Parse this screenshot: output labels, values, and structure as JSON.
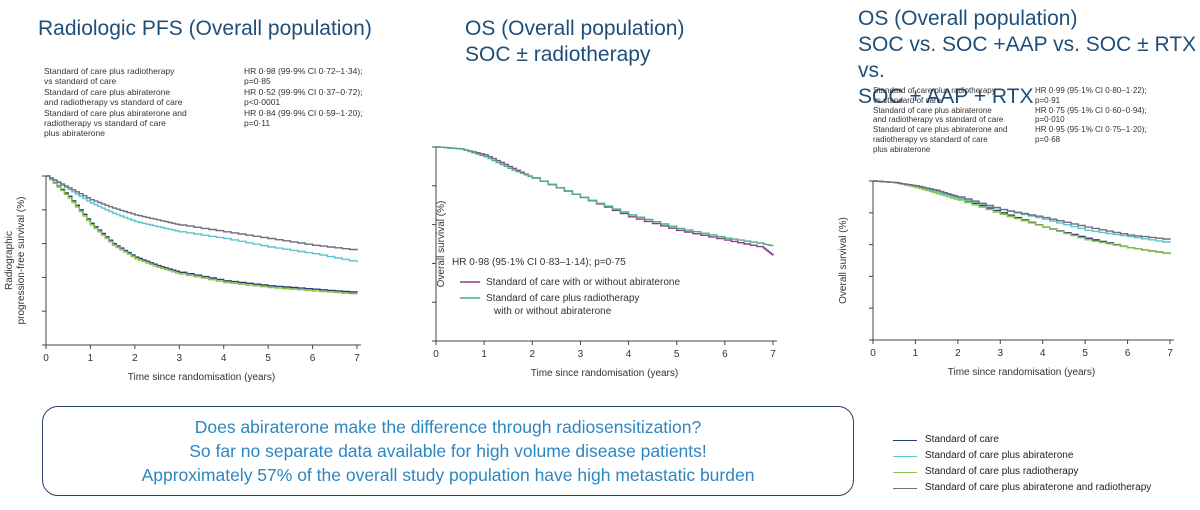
{
  "panels": {
    "pfs": {
      "title_lines": [
        "Radiologic PFS (Overall population)"
      ],
      "stats": [
        {
          "label": "Standard of care plus radiotherapy",
          "hr": "HR 0·98 (99·9% CI 0·72–1·34);"
        },
        {
          "label": "vs standard of care",
          "hr": "p=0·85"
        },
        {
          "label": "Standard of care plus abiraterone",
          "hr": "HR 0·52 (99·9% CI 0·37–0·72);"
        },
        {
          "label": "and radiotherapy vs standard of care",
          "hr": "p<0·0001"
        },
        {
          "label": "Standard of care plus abiraterone and",
          "hr": "HR 0·84 (99·9% CI 0·59–1·20);"
        },
        {
          "label": "radiotherapy vs standard of care",
          "hr": "p=0·11"
        },
        {
          "label": "plus abiraterone",
          "hr": ""
        }
      ]
    },
    "os1": {
      "title_lines": [
        "OS (Overall population)",
        "SOC ± radiotherapy"
      ]
    },
    "os2": {
      "title_lines": [
        "OS (Overall population)",
        "SOC vs. SOC +AAP vs. SOC ± RTX vs.",
        "SOC + AAP + RTX"
      ],
      "stats": [
        {
          "label": "Standard of care plus radiotherapy",
          "hr": "HR 0·99 (95·1% CI 0·80–1·22);"
        },
        {
          "label": "vs standard of care",
          "hr": "p=0·91"
        },
        {
          "label": "Standard of care plus abiraterone",
          "hr": "HR 0·75 (95·1% CI 0·60–0·94);"
        },
        {
          "label": "and radiotherapy vs standard of care",
          "hr": "p=0·010"
        },
        {
          "label": "Standard of care plus abiraterone and",
          "hr": "HR 0·95 (95·1% CI 0·75–1·20);"
        },
        {
          "label": "radiotherapy vs standard of care",
          "hr": "p=0·68"
        },
        {
          "label": "plus abiraterone",
          "hr": ""
        }
      ]
    }
  },
  "callout": {
    "lines": [
      "Does abiraterone make the difference through radiosensitization?",
      "So far no separate data available for high volume disease patients!",
      "Approximately 57% of the overall study population have high metastatic burden"
    ]
  },
  "legend": {
    "items": [
      {
        "label": "Standard of care",
        "color": "#2c3e7a"
      },
      {
        "label": "Standard of care plus abiraterone",
        "color": "#5bc4d1"
      },
      {
        "label": "Standard of care plus radiotherapy",
        "color": "#8bc34a"
      },
      {
        "label": "Standard of care plus abiraterone and radiotherapy",
        "color": "#6e6e80"
      }
    ]
  },
  "chart_data": [
    {
      "type": "line",
      "title": "Radiologic PFS (Overall population)",
      "xlabel": "Time since randomisation (years)",
      "ylabel": "Radiographic progression-free survival (%)",
      "xlim": [
        0,
        7
      ],
      "ylim": [
        0,
        100
      ],
      "xticks": [
        "0",
        "1",
        "2",
        "3",
        "4",
        "5",
        "6",
        "7"
      ],
      "annotation": "",
      "series": [
        {
          "name": "Standard of care",
          "color": "#2c3e7a",
          "x": [
            0,
            0.5,
            1,
            1.5,
            2,
            2.5,
            3,
            4,
            5,
            6,
            7
          ],
          "y": [
            100,
            88,
            72,
            60,
            52,
            47,
            43,
            38,
            35,
            33,
            31
          ]
        },
        {
          "name": "Standard of care plus abiraterone",
          "color": "#5bc4d1",
          "x": [
            0,
            0.5,
            1,
            1.5,
            2,
            2.5,
            3,
            4,
            5,
            6,
            7
          ],
          "y": [
            100,
            92,
            84,
            78,
            73,
            70,
            67,
            63,
            58,
            54,
            49
          ]
        },
        {
          "name": "Standard of care plus radiotherapy",
          "color": "#8bc34a",
          "x": [
            0,
            0.5,
            1,
            1.5,
            2,
            2.5,
            3,
            4,
            5,
            6,
            7
          ],
          "y": [
            100,
            87,
            71,
            59,
            51,
            46,
            42,
            37,
            34,
            32,
            30
          ]
        },
        {
          "name": "Standard of care plus abiraterone and radiotherapy",
          "color": "#6e6e80",
          "x": [
            0,
            0.5,
            1,
            1.5,
            2,
            2.5,
            3,
            4,
            5,
            6,
            7
          ],
          "y": [
            100,
            93,
            86,
            81,
            77,
            74,
            71,
            67,
            63,
            59,
            56
          ]
        }
      ]
    },
    {
      "type": "line",
      "title": "OS (Overall population) SOC ± radiotherapy",
      "xlabel": "Time since randomisation (years)",
      "ylabel": "Overall survival (%)",
      "xlim": [
        0,
        7
      ],
      "ylim": [
        0,
        100
      ],
      "xticks": [
        "0",
        "1",
        "2",
        "3",
        "4",
        "5",
        "6",
        "7"
      ],
      "annotation": "HR 0·98 (95·1% CI 0·83–1·14); p=0·75",
      "series": [
        {
          "name": "Standard of care with or without abiraterone",
          "color": "#8e3a8e",
          "x": [
            0,
            0.5,
            1,
            1.5,
            2,
            3,
            4,
            5,
            6,
            6.8,
            7
          ],
          "y": [
            100,
            99,
            96,
            90,
            84,
            74,
            64,
            57,
            52,
            48,
            44
          ]
        },
        {
          "name": "Standard of care plus radiotherapy with or without abiraterone",
          "color": "#4caf7d",
          "x": [
            0,
            0.5,
            1,
            1.5,
            2,
            3,
            4,
            5,
            6,
            6.8,
            7
          ],
          "y": [
            100,
            99,
            95,
            89,
            84,
            74,
            65,
            58,
            53,
            50,
            49
          ]
        }
      ]
    },
    {
      "type": "line",
      "title": "OS (Overall population) SOC vs. SOC +AAP vs. SOC ± RTX vs. SOC + AAP + RTX",
      "xlabel": "Time since randomisation (years)",
      "ylabel": "Overall survival (%)",
      "xlim": [
        0,
        7
      ],
      "ylim": [
        0,
        100
      ],
      "xticks": [
        "0",
        "1",
        "2",
        "3",
        "4",
        "5",
        "6",
        "7"
      ],
      "annotation": "",
      "series": [
        {
          "name": "Standard of care",
          "color": "#2c3e7a",
          "x": [
            0,
            0.5,
            1,
            1.5,
            2,
            3,
            4,
            5,
            6,
            7
          ],
          "y": [
            100,
            99,
            97,
            94,
            89,
            80,
            71,
            64,
            58,
            54
          ]
        },
        {
          "name": "Standard of care plus abiraterone",
          "color": "#5bc4d1",
          "x": [
            0,
            0.5,
            1,
            1.5,
            2,
            3,
            4,
            5,
            6,
            7
          ],
          "y": [
            100,
            99,
            96,
            93,
            89,
            82,
            76,
            69,
            65,
            61
          ]
        },
        {
          "name": "Standard of care plus radiotherapy",
          "color": "#8bc34a",
          "x": [
            0,
            0.5,
            1,
            1.5,
            2,
            3,
            4,
            5,
            6,
            7
          ],
          "y": [
            100,
            99,
            96,
            92,
            88,
            79,
            71,
            63,
            58,
            54
          ]
        },
        {
          "name": "Standard of care plus abiraterone and radiotherapy",
          "color": "#6e6e80",
          "x": [
            0,
            0.5,
            1,
            1.5,
            2,
            3,
            4,
            5,
            6,
            7
          ],
          "y": [
            100,
            99,
            97,
            94,
            90,
            82,
            77,
            71,
            66,
            63
          ]
        }
      ]
    }
  ]
}
